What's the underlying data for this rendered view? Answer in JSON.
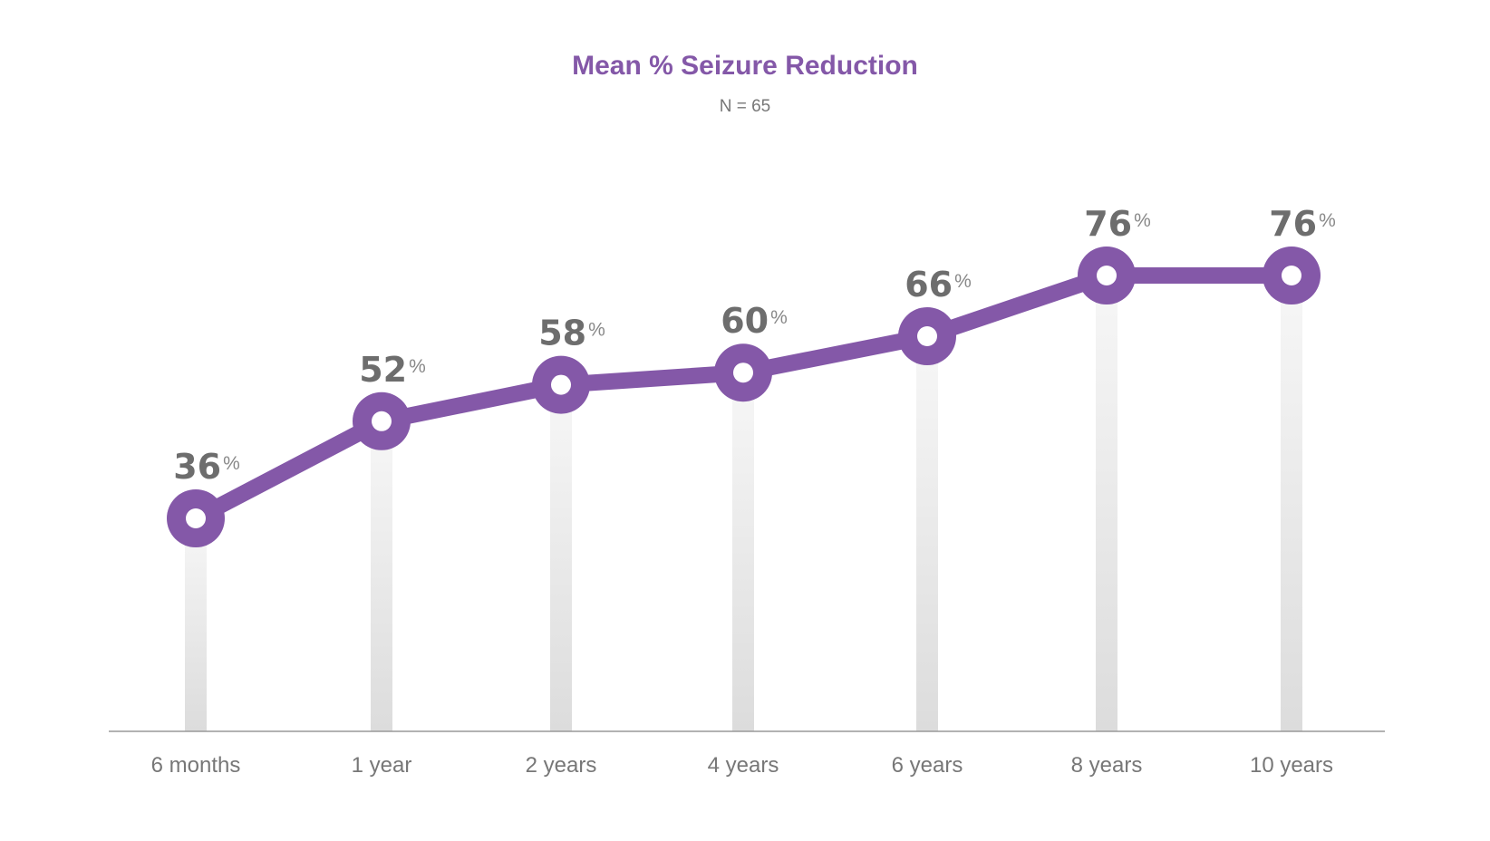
{
  "chart_data": {
    "type": "line",
    "title": "Mean % Seizure Reduction",
    "subtitle": "N = 65",
    "xlabel": "",
    "ylabel": "",
    "categories": [
      "6 months",
      "1 year",
      "2 years",
      "4 years",
      "6 years",
      "8 years",
      "10 years"
    ],
    "values": [
      36,
      52,
      58,
      60,
      66,
      76,
      76
    ],
    "value_unit": "%",
    "ylim": [
      0,
      100
    ],
    "grid": false,
    "legend": "none",
    "colors": {
      "line": "#8458a8",
      "marker_fill": "#ffffff",
      "title": "#8458a8",
      "labels": "#6d6d6d",
      "stem_top": "#f7f7f7",
      "stem_bottom": "#dcdcdc",
      "axis": "#999999"
    }
  }
}
